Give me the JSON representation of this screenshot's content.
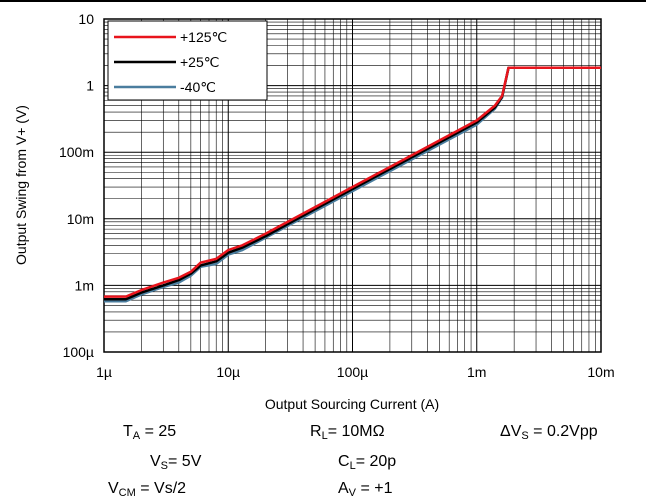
{
  "chart_data": {
    "type": "line",
    "xlabel": "Output Sourcing Current (A)",
    "ylabel": "Output Swing from V+ (V)",
    "x_scale": "log",
    "y_scale": "log",
    "xlim": [
      1e-06,
      0.01
    ],
    "ylim": [
      0.0001,
      10
    ],
    "x_ticks": [
      {
        "value": 1e-06,
        "label": "1µ"
      },
      {
        "value": 1e-05,
        "label": "10µ"
      },
      {
        "value": 0.0001,
        "label": "100µ"
      },
      {
        "value": 0.001,
        "label": "1m"
      },
      {
        "value": 0.01,
        "label": "10m"
      }
    ],
    "y_ticks": [
      {
        "value": 10,
        "label": "10"
      },
      {
        "value": 1,
        "label": "1"
      },
      {
        "value": 0.1,
        "label": "100m"
      },
      {
        "value": 0.01,
        "label": "10m"
      },
      {
        "value": 0.001,
        "label": "1m"
      },
      {
        "value": 0.0001,
        "label": "100µ"
      }
    ],
    "grid": true,
    "legend_position": "top-left",
    "series": [
      {
        "name": "+125℃",
        "color": "#e8141c",
        "x": [
          1e-06,
          1.5e-06,
          2e-06,
          3e-06,
          4e-06,
          5e-06,
          6e-06,
          8e-06,
          1e-05,
          1.3e-05,
          2e-05,
          5e-05,
          0.0001,
          0.0002,
          0.0005,
          0.001,
          0.0014,
          0.0016,
          0.0018,
          0.01
        ],
        "y": [
          0.00068,
          0.00068,
          0.00085,
          0.0011,
          0.0013,
          0.0016,
          0.0022,
          0.0025,
          0.0034,
          0.004,
          0.006,
          0.015,
          0.03,
          0.06,
          0.15,
          0.3,
          0.5,
          0.7,
          1.85,
          1.85
        ]
      },
      {
        "name": "+25℃",
        "color": "#000000",
        "x": [
          1e-06,
          1.5e-06,
          2e-06,
          3e-06,
          4e-06,
          5e-06,
          6e-06,
          8e-06,
          1e-05,
          1.3e-05,
          2e-05,
          5e-05,
          0.0001,
          0.0002,
          0.0005,
          0.001,
          0.0014,
          0.0016,
          0.0018,
          0.01
        ],
        "y": [
          0.00062,
          0.00062,
          0.00078,
          0.001,
          0.0012,
          0.0015,
          0.002,
          0.0023,
          0.0031,
          0.0037,
          0.0055,
          0.014,
          0.028,
          0.056,
          0.14,
          0.28,
          0.47,
          0.68,
          1.85,
          1.85
        ]
      },
      {
        "name": "-40℃",
        "color": "#4a7d9e",
        "x": [
          1e-06,
          1.5e-06,
          2e-06,
          3e-06,
          4e-06,
          5e-06,
          6e-06,
          8e-06,
          1e-05,
          1.3e-05,
          2e-05,
          5e-05,
          0.0001,
          0.0002,
          0.0005,
          0.001,
          0.0014,
          0.0016,
          0.0018,
          0.01
        ],
        "y": [
          0.00058,
          0.00058,
          0.00073,
          0.00095,
          0.0011,
          0.0014,
          0.0019,
          0.0021,
          0.0029,
          0.0034,
          0.0052,
          0.013,
          0.026,
          0.052,
          0.13,
          0.26,
          0.45,
          0.66,
          1.85,
          1.85
        ]
      }
    ]
  },
  "conditions": {
    "ta": {
      "main": "T",
      "sub": "A",
      "rest": " = 25"
    },
    "rl": {
      "main": "R",
      "sub": "L",
      "rest": "= 10MΩ"
    },
    "dvs": {
      "main": "ΔV",
      "sub": "S",
      "rest": " = 0.2Vpp"
    },
    "vs": {
      "main": "V",
      "sub": "S",
      "rest": "= 5V"
    },
    "cl": {
      "main": "C",
      "sub": "L",
      "rest": "= 20p"
    },
    "vcm": {
      "main": "V",
      "sub": "CM",
      "rest": " = Vs/2"
    },
    "av": {
      "main": "A",
      "sub": "V",
      "rest": " = +1"
    }
  }
}
